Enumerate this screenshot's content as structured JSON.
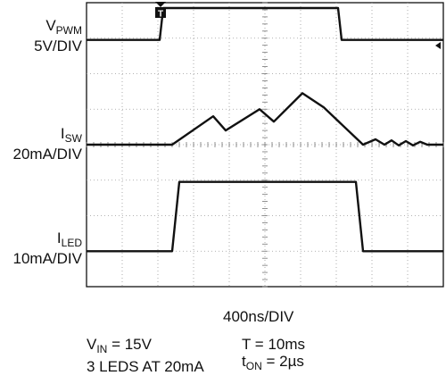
{
  "chart_data": {
    "type": "line",
    "subtype": "oscilloscope",
    "grid": true,
    "grid_divisions": {
      "x": 10,
      "y": 8
    },
    "time_base": "400ns/DIV",
    "trigger_marker": "T",
    "traces": [
      {
        "name_main": "V",
        "name_sub": "PWM",
        "scale": "5V/DIV",
        "units": "div",
        "x": [
          0,
          2.05,
          2.15,
          7.05,
          7.15,
          10
        ],
        "y": [
          6.95,
          6.95,
          7.85,
          7.85,
          6.95,
          6.95
        ]
      },
      {
        "name_main": "I",
        "name_sub": "SW",
        "scale": "20mA/DIV",
        "units": "div",
        "x": [
          0,
          2.4,
          3.55,
          3.9,
          4.85,
          5.25,
          6.05,
          6.65,
          7.75,
          8.1,
          8.35,
          8.55,
          8.75,
          8.95,
          9.15,
          9.35,
          9.55,
          10
        ],
        "y": [
          4.0,
          4.0,
          4.8,
          4.4,
          5.0,
          4.65,
          5.45,
          5.05,
          4.0,
          4.15,
          4.0,
          4.12,
          3.98,
          4.1,
          3.98,
          4.08,
          4.0,
          4.0
        ]
      },
      {
        "name_main": "I",
        "name_sub": "LED",
        "scale": "10mA/DIV",
        "units": "div",
        "x": [
          0,
          2.4,
          2.6,
          7.55,
          7.75,
          10
        ],
        "y": [
          1.0,
          1.0,
          2.95,
          2.95,
          1.0,
          1.0
        ]
      }
    ]
  },
  "conditions": {
    "vin_main": "V",
    "vin_sub": "IN",
    "vin_value": " = 15V",
    "leds": "3 LEDS AT 20mA",
    "period": "T = 10ms",
    "ton_main": "t",
    "ton_sub": "ON",
    "ton_value": " = 2µs"
  }
}
